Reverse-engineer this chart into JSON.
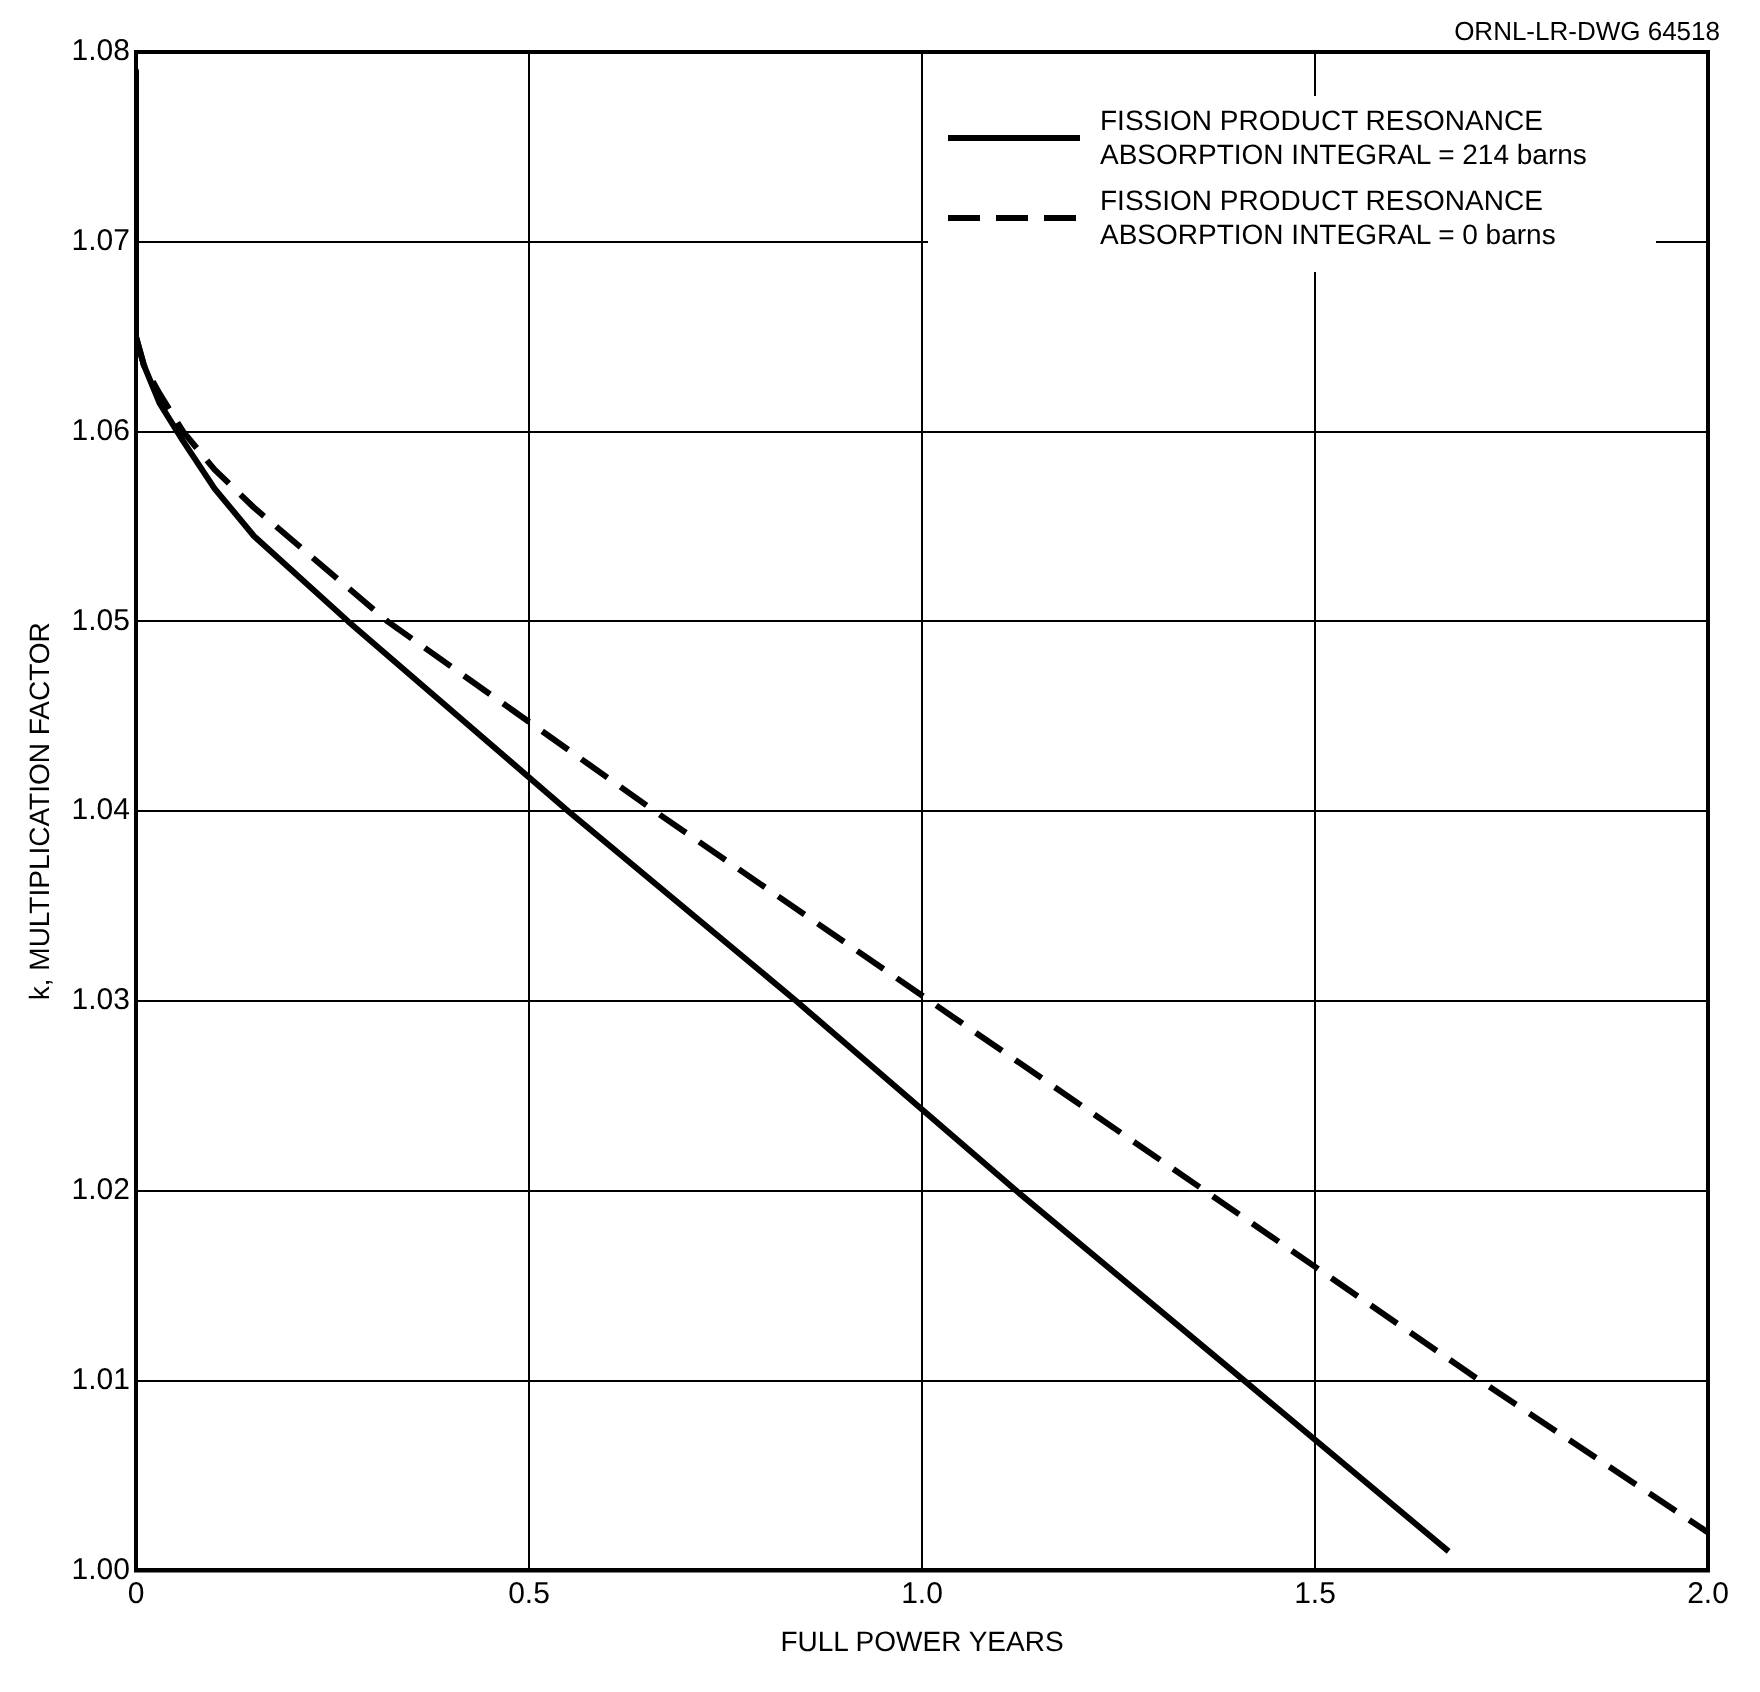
{
  "chart_data": {
    "type": "line",
    "xlabel": "FULL POWER YEARS",
    "ylabel": "k, MULTIPLICATION FACTOR",
    "annotations": [
      "ORNL-LR-DWG 64518"
    ],
    "xlim": [
      0,
      2
    ],
    "xticks": [
      {
        "value": 0,
        "label": "0"
      },
      0.5,
      {
        "value": 1,
        "label": "1.0"
      },
      1.5,
      {
        "value": 2,
        "label": "2.0"
      }
    ],
    "ylim": [
      1,
      1.08
    ],
    "yticks": [
      {
        "value": 1,
        "label": "1.00"
      },
      1.01,
      1.02,
      1.03,
      1.04,
      1.05,
      1.06,
      1.07,
      {
        "value": 1.08,
        "label": "1.08"
      }
    ],
    "grid": true,
    "legend": "top right",
    "marker": "none",
    "series": [
      {
        "name": "FISSION PRODUCT RESONANCE ABSORPTION INTEGRAL = 214 barns",
        "color": "#000000",
        "line_style": "solid",
        "x": [
          0,
          0,
          0.01,
          0.03,
          0.06,
          0.1,
          0.15,
          0.27,
          0.55,
          0.84,
          1.12,
          1.41,
          1.67
        ],
        "values": [
          1.079,
          1.065,
          1.0635,
          1.0615,
          1.0595,
          1.057,
          1.0545,
          1.05,
          1.04,
          1.03,
          1.02,
          1.01,
          1.001
        ]
      },
      {
        "name": "FISSION PRODUCT RESONANCE ABSORPTION INTEGRAL = 0 barns",
        "color": "#000000",
        "line_style": "dashed",
        "x": [
          0,
          0.01,
          0.03,
          0.06,
          0.1,
          0.15,
          0.32,
          0.66,
          1.01,
          1.36,
          1.71,
          2.0
        ],
        "values": [
          1.065,
          1.0635,
          1.062,
          1.06,
          1.058,
          1.056,
          1.05,
          1.04,
          1.03,
          1.02,
          1.01,
          1.002
        ]
      }
    ]
  }
}
